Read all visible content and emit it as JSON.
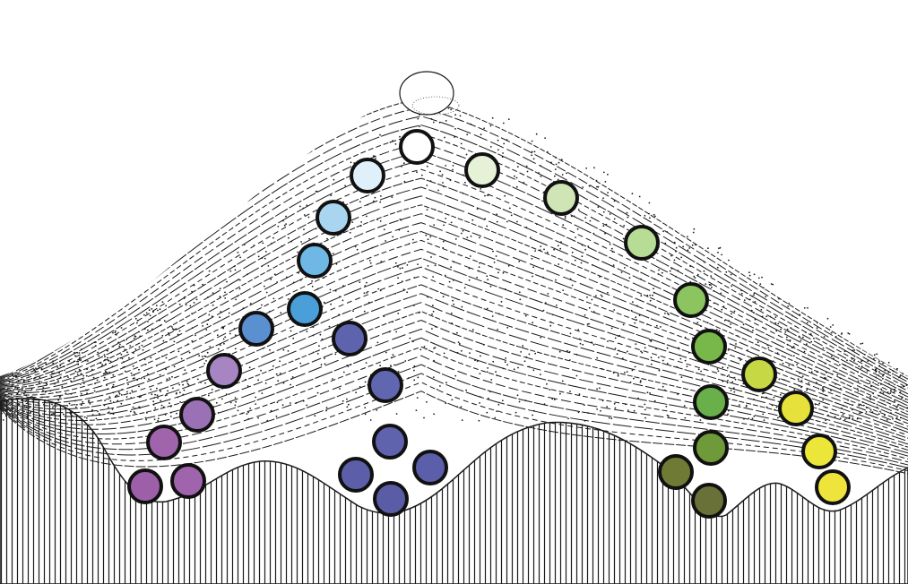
{
  "figure": {
    "background_color": "#ffffff",
    "ink_color": "#1a1a1a",
    "ball_outline_color": "#111111"
  },
  "cells": {
    "origin": {
      "name": "origin-cell",
      "color": "#ffffff"
    },
    "lineages": [
      {
        "name": "lineage-blue-purple",
        "colors": [
          "#dff0fa",
          "#a9d5f0",
          "#6fb8e6",
          "#4a9fd8",
          "#5a8fd0",
          "#a784c2",
          "#9b71b5",
          "#a064ac",
          "#9c5fa8"
        ]
      },
      {
        "name": "lineage-indigo",
        "colors": [
          "#5e63ad",
          "#6166b0",
          "#5f62ac",
          "#5b5ea8",
          "#5c5fa8",
          "#5a5ca5"
        ]
      },
      {
        "name": "lineage-green",
        "colors": [
          "#e6f2d8",
          "#cfe5b5",
          "#b6dc95",
          "#8cc560",
          "#78b84a",
          "#6ab04a",
          "#6f9a3a",
          "#6f7a35",
          "#6a7138"
        ]
      },
      {
        "name": "lineage-yellow",
        "colors": [
          "#c6d844",
          "#e6e13b",
          "#ede63a",
          "#efe43c"
        ]
      }
    ]
  }
}
